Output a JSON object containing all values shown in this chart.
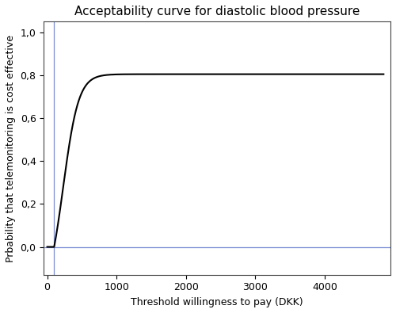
{
  "title": "Acceptability curve for diastolic blood pressure",
  "xlabel": "Threshold willingness to pay (DKK)",
  "ylabel": "Prbability that telemonitoring is cost effective",
  "xlim": [
    -50,
    4950
  ],
  "ylim": [
    -0.13,
    1.05
  ],
  "xticks": [
    0,
    1000,
    2000,
    3000,
    4000
  ],
  "yticks": [
    0.0,
    0.2,
    0.4,
    0.6,
    0.8,
    1.0
  ],
  "ytick_labels": [
    "0,0",
    "0,2",
    "0,4",
    "0,6",
    "0,8",
    "1,0"
  ],
  "vline_x": 100,
  "hline_y": 0.0,
  "vline_color": "#7b8fd4",
  "hline_color": "#7b8fd4",
  "curve_color": "#000000",
  "curve_lw": 1.5,
  "ref_line_lw": 0.9,
  "background_color": "#ffffff",
  "title_fontsize": 11,
  "label_fontsize": 9,
  "tick_fontsize": 9,
  "curve_asymptote": 0.805,
  "curve_steepness": 0.009,
  "curve_inflection": 230,
  "curve_x_start": 100,
  "curve_x_end": 4850
}
